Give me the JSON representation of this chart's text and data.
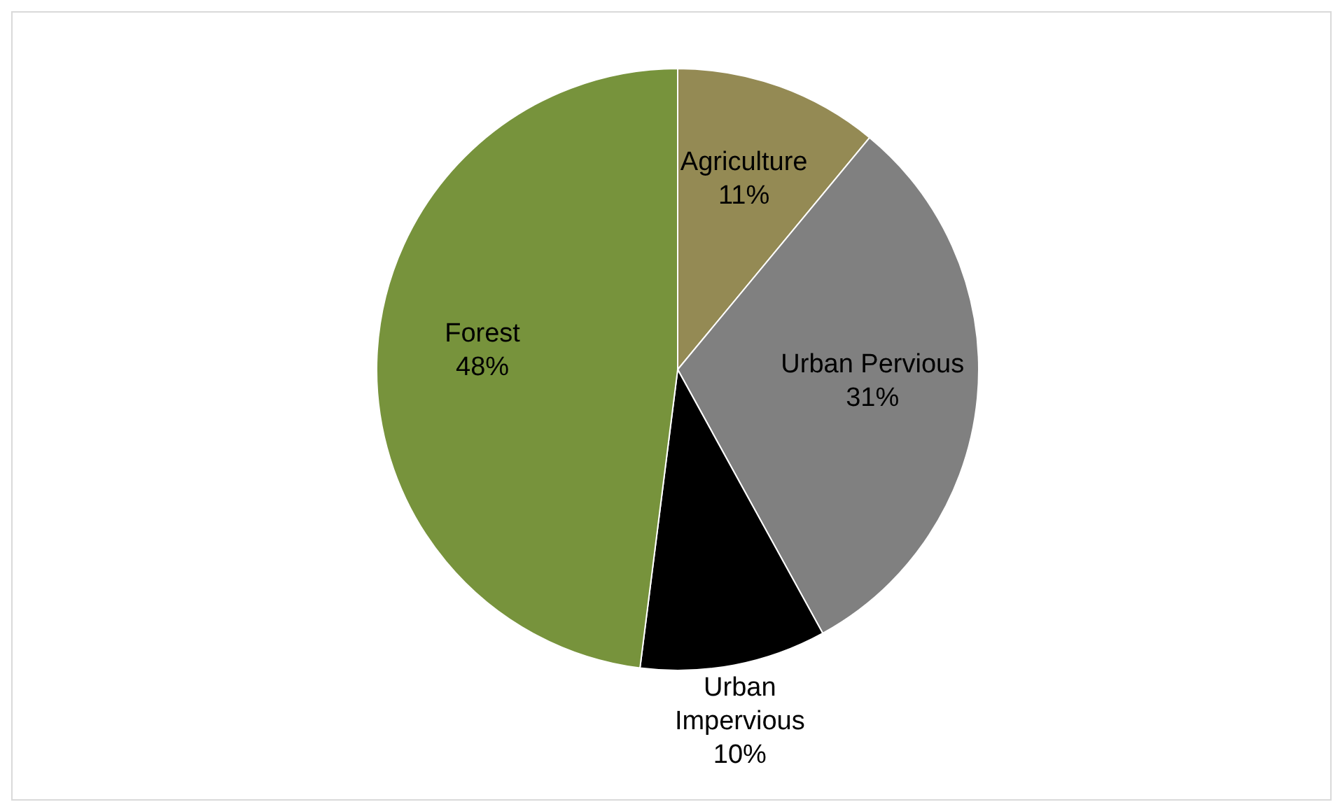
{
  "chart_data": {
    "type": "pie",
    "categories": [
      "Agriculture",
      "Urban Pervious",
      "Urban Impervious",
      "Forest"
    ],
    "values": [
      11,
      31,
      10,
      48
    ],
    "colors": [
      "#948a54",
      "#808080",
      "#000000",
      "#77933c"
    ],
    "value_labels": [
      "11%",
      "31%",
      "10%",
      "48%"
    ]
  }
}
